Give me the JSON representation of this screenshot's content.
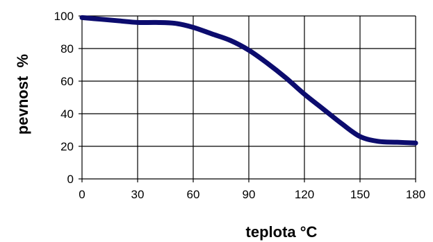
{
  "chart_data": {
    "type": "line",
    "title": "",
    "xlabel": "teplota °C",
    "ylabel": "pevnost  %",
    "xlim": [
      0,
      180
    ],
    "ylim": [
      0,
      100
    ],
    "xticks": [
      0,
      30,
      60,
      90,
      120,
      150,
      180
    ],
    "yticks": [
      0,
      20,
      40,
      60,
      80,
      100
    ],
    "xtick_labels": [
      "0",
      "30",
      "60",
      "90",
      "120",
      "150",
      "180"
    ],
    "ytick_labels": [
      "0",
      "20",
      "40",
      "60",
      "80",
      "100"
    ],
    "grid": true,
    "legend": "none",
    "series": [
      {
        "color": "#0c0c6e",
        "x": [
          0,
          10,
          20,
          30,
          40,
          50,
          60,
          70,
          80,
          90,
          100,
          110,
          120,
          130,
          140,
          150,
          160,
          170,
          180
        ],
        "y": [
          99,
          98,
          97,
          96,
          96,
          95.5,
          93,
          89,
          85,
          79,
          71,
          62,
          52,
          43,
          34,
          26,
          23,
          22.5,
          22
        ]
      }
    ]
  }
}
